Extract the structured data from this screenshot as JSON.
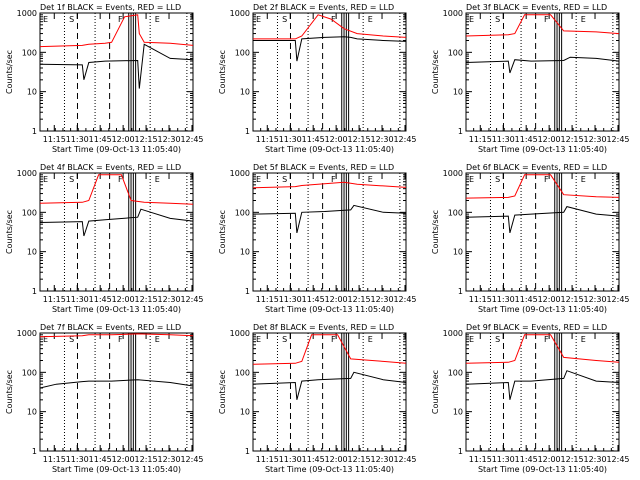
{
  "chart_data": [
    {
      "type": "line",
      "title": "Det 1f BLACK = Events, RED = LLD",
      "ylabel": "Counts/sec",
      "xlabel": "Start Time (09-Oct-13 11:05:40)",
      "x_ticks": [
        "11:15",
        "11:30",
        "11:45",
        "12:00",
        "12:15",
        "12:30",
        "12:45"
      ],
      "y_ticks": [
        "1",
        "10",
        "100",
        "1000"
      ],
      "ylim": [
        1,
        1000
      ],
      "y_scale": "log",
      "markers": [
        "E",
        "S",
        "F",
        "E"
      ],
      "series": [
        {
          "name": "Events",
          "color": "#000000",
          "values": [
            [
              0,
              50
            ],
            [
              13,
              48
            ],
            [
              13.5,
              20
            ],
            [
              15,
              55
            ],
            [
              20,
              60
            ],
            [
              30,
              62
            ],
            [
              30.5,
              12
            ],
            [
              32,
              160
            ],
            [
              40,
              70
            ],
            [
              47,
              65
            ]
          ]
        },
        {
          "name": "LLD",
          "color": "#ff0000",
          "values": [
            [
              0,
              140
            ],
            [
              13,
              150
            ],
            [
              15,
              160
            ],
            [
              20,
              170
            ],
            [
              22,
              180
            ],
            [
              26,
              800
            ],
            [
              30,
              900
            ],
            [
              30.5,
              300
            ],
            [
              32,
              180
            ],
            [
              40,
              170
            ],
            [
              47,
              150
            ]
          ]
        }
      ]
    },
    {
      "type": "line",
      "title": "Det 2f BLACK = Events, RED = LLD",
      "ylabel": "Counts/sec",
      "xlabel": "Start Time (09-Oct-13 11:05:40)",
      "x_ticks": [
        "11:15",
        "11:30",
        "11:45",
        "12:00",
        "12:15",
        "12:30",
        "12:45"
      ],
      "y_ticks": [
        "1",
        "10",
        "100",
        "1000"
      ],
      "ylim": [
        1,
        1000
      ],
      "y_scale": "log",
      "markers": [
        "E",
        "S",
        "F",
        "E"
      ],
      "series": [
        {
          "name": "Events",
          "color": "#000000",
          "values": [
            [
              0,
              200
            ],
            [
              13,
              200
            ],
            [
              13.5,
              60
            ],
            [
              15,
              220
            ],
            [
              22,
              240
            ],
            [
              28,
              250
            ],
            [
              30,
              240
            ],
            [
              32,
              220
            ],
            [
              40,
              200
            ],
            [
              47,
              190
            ]
          ]
        },
        {
          "name": "LLD",
          "color": "#ff0000",
          "values": [
            [
              0,
              220
            ],
            [
              13,
              220
            ],
            [
              15,
              260
            ],
            [
              20,
              900
            ],
            [
              24,
              700
            ],
            [
              28,
              400
            ],
            [
              32,
              300
            ],
            [
              40,
              260
            ],
            [
              47,
              240
            ]
          ]
        }
      ]
    },
    {
      "type": "line",
      "title": "Det 3f BLACK = Events, RED = LLD",
      "ylabel": "Counts/sec",
      "xlabel": "Start Time (09-Oct-13 11:05:40)",
      "x_ticks": [
        "11:15",
        "11:30",
        "11:45",
        "12:00",
        "12:15",
        "12:30",
        "12:45"
      ],
      "y_ticks": [
        "1",
        "10",
        "100",
        "1000"
      ],
      "ylim": [
        1,
        1000
      ],
      "y_scale": "log",
      "markers": [
        "E",
        "S",
        "F",
        "E"
      ],
      "series": [
        {
          "name": "Events",
          "color": "#000000",
          "values": [
            [
              0,
              55
            ],
            [
              13,
              60
            ],
            [
              13.5,
              30
            ],
            [
              15,
              65
            ],
            [
              20,
              60
            ],
            [
              30,
              62
            ],
            [
              32,
              75
            ],
            [
              40,
              70
            ],
            [
              47,
              60
            ]
          ]
        },
        {
          "name": "LLD",
          "color": "#ff0000",
          "values": [
            [
              0,
              260
            ],
            [
              13,
              280
            ],
            [
              15,
              300
            ],
            [
              18,
              900
            ],
            [
              26,
              900
            ],
            [
              30,
              350
            ],
            [
              40,
              330
            ],
            [
              47,
              300
            ]
          ]
        }
      ]
    },
    {
      "type": "line",
      "title": "Det 4f BLACK = Events, RED = LLD",
      "ylabel": "Counts/sec",
      "xlabel": "Start Time (09-Oct-13 11:05:40)",
      "x_ticks": [
        "11:15",
        "11:30",
        "11:45",
        "12:00",
        "12:15",
        "12:30",
        "12:45"
      ],
      "y_ticks": [
        "1",
        "10",
        "100",
        "1000"
      ],
      "ylim": [
        1,
        1000
      ],
      "y_scale": "log",
      "markers": [
        "E",
        "S",
        "F",
        "E"
      ],
      "series": [
        {
          "name": "Events",
          "color": "#000000",
          "values": [
            [
              0,
              55
            ],
            [
              13,
              58
            ],
            [
              13.5,
              25
            ],
            [
              15,
              60
            ],
            [
              20,
              65
            ],
            [
              30,
              75
            ],
            [
              31,
              120
            ],
            [
              40,
              70
            ],
            [
              47,
              60
            ]
          ]
        },
        {
          "name": "LLD",
          "color": "#ff0000",
          "values": [
            [
              0,
              170
            ],
            [
              13,
              180
            ],
            [
              15,
              200
            ],
            [
              18,
              900
            ],
            [
              25,
              900
            ],
            [
              28,
              200
            ],
            [
              32,
              180
            ],
            [
              40,
              170
            ],
            [
              47,
              160
            ]
          ]
        }
      ]
    },
    {
      "type": "line",
      "title": "Det 5f BLACK = Events, RED = LLD",
      "ylabel": "Counts/sec",
      "xlabel": "Start Time (09-Oct-13 11:05:40)",
      "x_ticks": [
        "11:15",
        "11:30",
        "11:45",
        "12:00",
        "12:15",
        "12:30",
        "12:45"
      ],
      "y_ticks": [
        "1",
        "10",
        "100",
        "1000"
      ],
      "ylim": [
        1,
        1000
      ],
      "y_scale": "log",
      "markers": [
        "E",
        "S",
        "F",
        "E"
      ],
      "series": [
        {
          "name": "Events",
          "color": "#000000",
          "values": [
            [
              0,
              90
            ],
            [
              13,
              95
            ],
            [
              13.5,
              30
            ],
            [
              15,
              100
            ],
            [
              22,
              105
            ],
            [
              30,
              115
            ],
            [
              31,
              150
            ],
            [
              40,
              100
            ],
            [
              47,
              95
            ]
          ]
        },
        {
          "name": "LLD",
          "color": "#ff0000",
          "values": [
            [
              0,
              420
            ],
            [
              13,
              450
            ],
            [
              15,
              480
            ],
            [
              20,
              520
            ],
            [
              28,
              580
            ],
            [
              32,
              520
            ],
            [
              40,
              470
            ],
            [
              47,
              430
            ]
          ]
        }
      ]
    },
    {
      "type": "line",
      "title": "Det 6f BLACK = Events, RED = LLD",
      "ylabel": "Counts/sec",
      "xlabel": "Start Time (09-Oct-13 11:05:40)",
      "x_ticks": [
        "11:15",
        "11:30",
        "11:45",
        "12:00",
        "12:15",
        "12:30",
        "12:45"
      ],
      "y_ticks": [
        "1",
        "10",
        "100",
        "1000"
      ],
      "ylim": [
        1,
        1000
      ],
      "y_scale": "log",
      "markers": [
        "E",
        "S",
        "F",
        "E"
      ],
      "series": [
        {
          "name": "Events",
          "color": "#000000",
          "values": [
            [
              0,
              75
            ],
            [
              13,
              80
            ],
            [
              13.5,
              30
            ],
            [
              15,
              85
            ],
            [
              20,
              90
            ],
            [
              30,
              100
            ],
            [
              31,
              140
            ],
            [
              40,
              90
            ],
            [
              47,
              80
            ]
          ]
        },
        {
          "name": "LLD",
          "color": "#ff0000",
          "values": [
            [
              0,
              230
            ],
            [
              13,
              240
            ],
            [
              15,
              260
            ],
            [
              18,
              900
            ],
            [
              26,
              900
            ],
            [
              30,
              280
            ],
            [
              40,
              250
            ],
            [
              47,
              240
            ]
          ]
        }
      ]
    },
    {
      "type": "line",
      "title": "Det 7f BLACK = Events, RED = LLD",
      "ylabel": "Counts/sec",
      "xlabel": "Start Time (09-Oct-13 11:05:40)",
      "x_ticks": [
        "11:15",
        "11:30",
        "11:45",
        "12:00",
        "12:15",
        "12:30",
        "12:45"
      ],
      "y_ticks": [
        "1",
        "10",
        "100",
        "1000"
      ],
      "ylim": [
        1,
        1000
      ],
      "y_scale": "log",
      "markers": [
        "E",
        "S",
        "F",
        "E"
      ],
      "series": [
        {
          "name": "Events",
          "color": "#000000",
          "values": [
            [
              0,
              40
            ],
            [
              5,
              50
            ],
            [
              13,
              58
            ],
            [
              15,
              60
            ],
            [
              22,
              60
            ],
            [
              30,
              65
            ],
            [
              40,
              55
            ],
            [
              47,
              45
            ]
          ]
        },
        {
          "name": "LLD",
          "color": "#ff0000",
          "values": [
            [
              0,
              800
            ],
            [
              13,
              850
            ],
            [
              15,
              900
            ],
            [
              22,
              900
            ],
            [
              30,
              950
            ],
            [
              40,
              900
            ],
            [
              47,
              850
            ]
          ]
        }
      ]
    },
    {
      "type": "line",
      "title": "Det 8f BLACK = Events, RED = LLD",
      "ylabel": "Counts/sec",
      "xlabel": "Start Time (09-Oct-13 11:05:40)",
      "x_ticks": [
        "11:15",
        "11:30",
        "11:45",
        "12:00",
        "12:15",
        "12:30",
        "12:45"
      ],
      "y_ticks": [
        "1",
        "10",
        "100",
        "1000"
      ],
      "ylim": [
        1,
        1000
      ],
      "y_scale": "log",
      "markers": [
        "E",
        "S",
        "F",
        "E"
      ],
      "series": [
        {
          "name": "Events",
          "color": "#000000",
          "values": [
            [
              0,
              50
            ],
            [
              13,
              55
            ],
            [
              13.5,
              20
            ],
            [
              15,
              60
            ],
            [
              20,
              65
            ],
            [
              30,
              70
            ],
            [
              31,
              100
            ],
            [
              40,
              65
            ],
            [
              47,
              55
            ]
          ]
        },
        {
          "name": "LLD",
          "color": "#ff0000",
          "values": [
            [
              0,
              160
            ],
            [
              13,
              170
            ],
            [
              15,
              190
            ],
            [
              18,
              900
            ],
            [
              26,
              900
            ],
            [
              30,
              220
            ],
            [
              40,
              190
            ],
            [
              47,
              170
            ]
          ]
        }
      ]
    },
    {
      "type": "line",
      "title": "Det 9f BLACK = Events, RED = LLD",
      "ylabel": "Counts/sec",
      "xlabel": "Start Time (09-Oct-13 11:05:40)",
      "x_ticks": [
        "11:15",
        "11:30",
        "11:45",
        "12:00",
        "12:15",
        "12:30",
        "12:45"
      ],
      "y_ticks": [
        "1",
        "10",
        "100",
        "1000"
      ],
      "ylim": [
        1,
        1000
      ],
      "y_scale": "log",
      "markers": [
        "E",
        "S",
        "F",
        "E"
      ],
      "series": [
        {
          "name": "Events",
          "color": "#000000",
          "values": [
            [
              0,
              50
            ],
            [
              13,
              55
            ],
            [
              13.5,
              20
            ],
            [
              15,
              60
            ],
            [
              20,
              60
            ],
            [
              30,
              70
            ],
            [
              31,
              110
            ],
            [
              40,
              60
            ],
            [
              47,
              55
            ]
          ]
        },
        {
          "name": "LLD",
          "color": "#ff0000",
          "values": [
            [
              0,
              170
            ],
            [
              13,
              180
            ],
            [
              15,
              200
            ],
            [
              18,
              900
            ],
            [
              26,
              900
            ],
            [
              30,
              240
            ],
            [
              40,
              200
            ],
            [
              47,
              180
            ]
          ]
        }
      ]
    }
  ]
}
